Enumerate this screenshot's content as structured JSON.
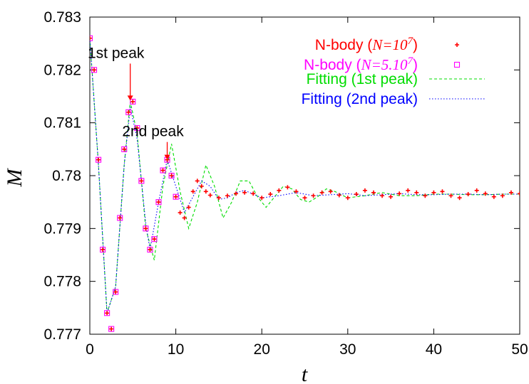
{
  "chart_data": {
    "type": "line",
    "title": "",
    "xlabel": "t",
    "ylabel": "M",
    "xlim": [
      0,
      50
    ],
    "ylim": [
      0.777,
      0.783
    ],
    "xticks": [
      "0",
      "10",
      "20",
      "30",
      "40",
      "50"
    ],
    "yticks": [
      "0.777",
      "0.778",
      "0.779",
      "0.78",
      "0.781",
      "0.782",
      "0.783"
    ],
    "grid": false,
    "legend_position": "top-right",
    "colors": {
      "nbody_1e7": "#ff0000",
      "nbody_5e7": "#ff00ff",
      "fit_1st": "#00dd00",
      "fit_2nd": "#0000ff",
      "annotation_arrow": "#ff0000"
    },
    "legend": [
      {
        "prefix": "N-body (",
        "math": "N",
        "eq": "=10",
        "sup": "7",
        "suffix": ")"
      },
      {
        "prefix": "N-body (",
        "math": "N",
        "eq": "=5.10",
        "sup": "7",
        "suffix": ")"
      },
      {
        "prefix": "Fitting (1st peak)",
        "math": "",
        "eq": "",
        "sup": "",
        "suffix": ""
      },
      {
        "prefix": "Fitting (2nd peak)",
        "math": "",
        "eq": "",
        "sup": "",
        "suffix": ""
      }
    ],
    "annotations": [
      {
        "text": "1st peak",
        "x": 4.7,
        "y": 0.78138
      },
      {
        "text": "2nd peak",
        "x": 9.0,
        "y": 0.78026
      }
    ],
    "series": [
      {
        "name": "N-body (N=10^7)",
        "marker": "plus",
        "x": [
          0,
          0.5,
          1,
          1.5,
          2,
          2.5,
          3,
          3.5,
          4,
          4.5,
          5,
          5.5,
          6,
          6.5,
          7,
          7.5,
          8,
          8.5,
          9,
          9.5,
          10,
          10.5,
          11,
          11.5,
          12,
          12.5,
          13,
          13.5,
          14,
          15,
          16,
          17,
          18,
          19,
          20,
          21,
          22,
          23,
          24,
          25,
          26,
          27,
          28,
          29,
          30,
          31,
          32,
          33,
          34,
          35,
          36,
          37,
          38,
          39,
          40,
          41,
          42,
          43,
          44,
          45,
          46,
          47,
          48,
          49,
          50
        ],
        "y": [
          0.7826,
          0.782,
          0.7803,
          0.7786,
          0.7774,
          0.7771,
          0.7778,
          0.7792,
          0.7805,
          0.7812,
          0.7814,
          0.7809,
          0.7799,
          0.779,
          0.7786,
          0.7788,
          0.7795,
          0.7801,
          0.7803,
          0.78,
          0.7796,
          0.7793,
          0.7792,
          0.7794,
          0.7797,
          0.7799,
          0.7798,
          0.7797,
          0.77963,
          0.77958,
          0.77962,
          0.77966,
          0.77968,
          0.77966,
          0.77958,
          0.77965,
          0.77972,
          0.77978,
          0.7797,
          0.77958,
          0.77962,
          0.77968,
          0.7797,
          0.77963,
          0.77958,
          0.77965,
          0.77972,
          0.77968,
          0.77962,
          0.7796,
          0.77966,
          0.77972,
          0.77968,
          0.77962,
          0.77968,
          0.7797,
          0.77962,
          0.77958,
          0.77965,
          0.77972,
          0.77966,
          0.7796,
          0.77962,
          0.77968,
          0.77966
        ]
      },
      {
        "name": "N-body (N=5.10^7)",
        "marker": "square",
        "x": [
          0,
          0.5,
          1,
          1.5,
          2,
          2.5,
          3,
          3.5,
          4,
          4.5,
          5,
          5.5,
          6,
          6.5,
          7,
          7.5,
          8,
          8.5,
          9,
          9.5,
          10
        ],
        "y": [
          0.7826,
          0.782,
          0.7803,
          0.7786,
          0.7774,
          0.7771,
          0.7778,
          0.7792,
          0.7805,
          0.7812,
          0.7814,
          0.7809,
          0.7799,
          0.779,
          0.7786,
          0.7788,
          0.7795,
          0.7801,
          0.7803,
          0.78,
          0.7796
        ]
      },
      {
        "name": "Fitting (1st peak)",
        "line": "dashed",
        "x": [
          0,
          1,
          2,
          3,
          4,
          4.7,
          5.5,
          6.5,
          7.5,
          8.5,
          9.5,
          10.5,
          11.5,
          12.5,
          13.5,
          14.5,
          15.5,
          16.5,
          17.5,
          18.5,
          19.5,
          20.5,
          21.5,
          22.5,
          23.5,
          24.5,
          25.5,
          26.5,
          27.5,
          28.5,
          30,
          32,
          34,
          36,
          38,
          40,
          42,
          44,
          46,
          48,
          50
        ],
        "y": [
          0.7826,
          0.7802,
          0.7774,
          0.7779,
          0.7802,
          0.7814,
          0.7808,
          0.779,
          0.7784,
          0.7798,
          0.7806,
          0.7797,
          0.779,
          0.7795,
          0.7802,
          0.7798,
          0.7792,
          0.7795,
          0.7799,
          0.7799,
          0.7796,
          0.7794,
          0.7796,
          0.7798,
          0.77975,
          0.77955,
          0.7795,
          0.7796,
          0.77975,
          0.7797,
          0.77958,
          0.77962,
          0.77968,
          0.77962,
          0.77962,
          0.77965,
          0.77965,
          0.77964,
          0.77964,
          0.77965,
          0.77965
        ]
      },
      {
        "name": "Fitting (2nd peak)",
        "line": "dotted",
        "x": [
          0,
          1,
          2,
          3,
          4,
          4.7,
          5.5,
          6.5,
          7,
          8,
          9,
          10,
          11,
          12,
          13,
          14,
          15,
          16,
          17,
          18,
          19,
          20,
          22,
          24,
          26,
          28,
          30,
          32,
          34,
          36,
          38,
          40,
          42,
          44,
          46,
          48,
          50
        ],
        "y": [
          0.7826,
          0.7802,
          0.7774,
          0.7779,
          0.7802,
          0.7813,
          0.7807,
          0.7791,
          0.7786,
          0.7795,
          0.7803,
          0.7798,
          0.7793,
          0.7796,
          0.7799,
          0.7798,
          0.77955,
          0.77958,
          0.77968,
          0.77972,
          0.77965,
          0.77958,
          0.77962,
          0.77968,
          0.77962,
          0.77964,
          0.77966,
          0.77962,
          0.77964,
          0.77966,
          0.77964,
          0.77964,
          0.77965,
          0.77965,
          0.77964,
          0.77965,
          0.77965
        ]
      }
    ]
  }
}
